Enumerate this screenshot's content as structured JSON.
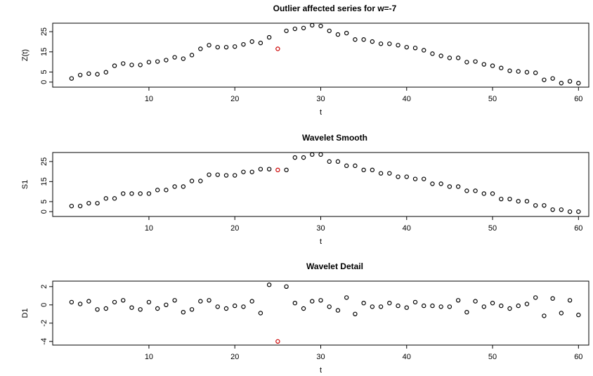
{
  "chart_data": [
    {
      "type": "scatter",
      "title": "Outlier affected series for w=-7",
      "x_label": "t",
      "y_label": "Z(t)",
      "x": [
        1,
        2,
        3,
        4,
        5,
        6,
        7,
        8,
        9,
        10,
        11,
        12,
        13,
        14,
        15,
        16,
        17,
        18,
        19,
        20,
        21,
        22,
        23,
        24,
        25,
        26,
        27,
        28,
        29,
        30,
        31,
        32,
        33,
        34,
        35,
        36,
        37,
        38,
        39,
        40,
        41,
        42,
        43,
        44,
        45,
        46,
        47,
        48,
        49,
        50,
        51,
        52,
        53,
        54,
        55,
        56,
        57,
        58,
        59,
        60
      ],
      "values": [
        1.8,
        3.5,
        4.2,
        3.9,
        4.9,
        8.1,
        9.2,
        8.5,
        8.5,
        9.9,
        10.2,
        10.9,
        12.3,
        11.6,
        13.4,
        16.5,
        18.3,
        17.3,
        17.3,
        17.6,
        18.7,
        20.1,
        19.4,
        22.2,
        16.5,
        25.4,
        26.4,
        26.8,
        28.2,
        27.8,
        25.4,
        23.6,
        24.3,
        21.1,
        21.1,
        20.1,
        19.0,
        19.0,
        18.3,
        17.3,
        16.9,
        15.8,
        14.1,
        13.0,
        12.0,
        12.0,
        9.9,
        10.2,
        8.8,
        8.1,
        7.0,
        5.6,
        5.3,
        4.9,
        4.6,
        1.1,
        1.8,
        -0.5,
        0.4,
        -0.5
      ],
      "color": "#000000",
      "highlight": {
        "x": 25,
        "color": "#cc0000"
      },
      "xlim": [
        -1.2,
        61.2
      ],
      "xticks": [
        10,
        20,
        30,
        40,
        50,
        60
      ],
      "ylim": [
        -2.5,
        29.2
      ],
      "yticks": [
        0,
        5,
        15,
        25
      ]
    },
    {
      "type": "scatter",
      "title": "Wavelet Smooth",
      "x_label": "t",
      "y_label": "S1",
      "x": [
        1,
        2,
        3,
        4,
        5,
        6,
        7,
        8,
        9,
        10,
        11,
        12,
        13,
        14,
        15,
        16,
        17,
        18,
        19,
        20,
        21,
        22,
        23,
        24,
        25,
        26,
        27,
        28,
        29,
        30,
        31,
        32,
        33,
        34,
        35,
        36,
        37,
        38,
        39,
        40,
        41,
        42,
        43,
        44,
        45,
        46,
        47,
        48,
        49,
        50,
        51,
        52,
        53,
        54,
        55,
        56,
        57,
        58,
        59,
        60
      ],
      "values": [
        2.8,
        2.8,
        4.2,
        4.2,
        6.6,
        6.6,
        9.0,
        9.0,
        9.0,
        9.0,
        10.8,
        10.8,
        12.5,
        12.5,
        15.3,
        15.3,
        18.4,
        18.4,
        18.1,
        18.1,
        19.8,
        19.8,
        21.2,
        21.2,
        20.8,
        20.8,
        27.0,
        27.0,
        28.5,
        28.5,
        25.0,
        25.0,
        22.9,
        22.9,
        20.8,
        20.8,
        19.1,
        19.1,
        17.4,
        17.4,
        16.3,
        16.3,
        13.9,
        13.9,
        12.5,
        12.5,
        10.4,
        10.4,
        9.0,
        9.0,
        6.3,
        6.3,
        5.2,
        5.2,
        3.1,
        3.1,
        1.0,
        1.0,
        0.0,
        0.0
      ],
      "color": "#000000",
      "highlight": {
        "x": 25,
        "color": "#cc0000"
      },
      "xlim": [
        -1.2,
        61.2
      ],
      "xticks": [
        10,
        20,
        30,
        40,
        50,
        60
      ],
      "ylim": [
        -2.4,
        29.5
      ],
      "yticks": [
        0,
        5,
        15,
        25
      ]
    },
    {
      "type": "scatter",
      "title": "Wavelet Detail",
      "x_label": "t",
      "y_label": "D1",
      "x": [
        1,
        2,
        3,
        4,
        5,
        6,
        7,
        8,
        9,
        10,
        11,
        12,
        13,
        14,
        15,
        16,
        17,
        18,
        19,
        20,
        21,
        22,
        23,
        24,
        25,
        26,
        27,
        28,
        29,
        30,
        31,
        32,
        33,
        34,
        35,
        36,
        37,
        38,
        39,
        40,
        41,
        42,
        43,
        44,
        45,
        46,
        47,
        48,
        49,
        50,
        51,
        52,
        53,
        54,
        55,
        56,
        57,
        58,
        59,
        60
      ],
      "values": [
        0.3,
        0.1,
        0.4,
        -0.5,
        -0.4,
        0.3,
        0.5,
        -0.3,
        -0.5,
        0.3,
        -0.4,
        0,
        0.5,
        -0.8,
        -0.5,
        0.4,
        0.5,
        -0.2,
        -0.4,
        -0.1,
        -0.2,
        0.4,
        -0.9,
        2.2,
        -4.0,
        2.0,
        0.2,
        -0.4,
        0.4,
        0.5,
        -0.2,
        -0.6,
        0.8,
        -1.0,
        0.2,
        -0.2,
        -0.2,
        0.2,
        -0.1,
        -0.3,
        0.3,
        -0.1,
        -0.1,
        -0.2,
        -0.2,
        0.5,
        -0.8,
        0.4,
        -0.2,
        0.2,
        -0.1,
        -0.4,
        -0.1,
        0.1,
        0.8,
        -1.2,
        0.7,
        -0.9,
        0.5,
        -1.1
      ],
      "color": "#000000",
      "highlight": {
        "x": 25,
        "color": "#cc0000"
      },
      "xlim": [
        -1.2,
        61.2
      ],
      "xticks": [
        10,
        20,
        30,
        40,
        50,
        60
      ],
      "ylim": [
        -4.4,
        2.6
      ],
      "yticks": [
        -4,
        -2,
        0,
        2
      ]
    }
  ]
}
